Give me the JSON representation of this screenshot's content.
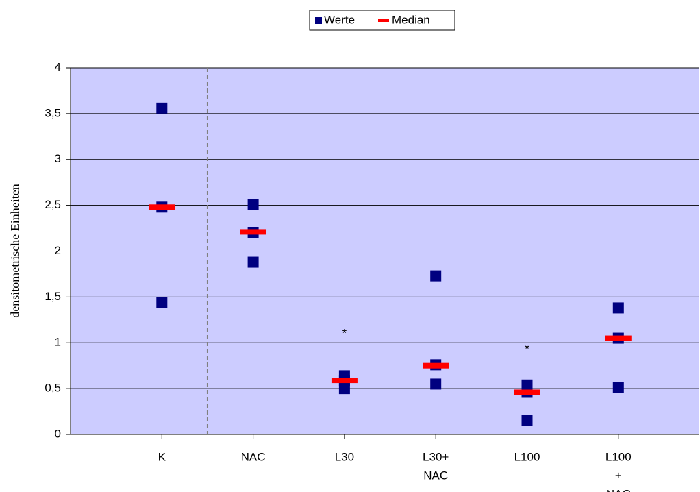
{
  "chart_data": {
    "type": "dot",
    "y_label": "densitometrische Einheiten",
    "categories": [
      [
        "K"
      ],
      [
        "NAC"
      ],
      [
        "L30"
      ],
      [
        "L30+",
        "NAC"
      ],
      [
        "L100"
      ],
      [
        "L100",
        "+",
        "NAC"
      ]
    ],
    "series": [
      {
        "name": "Werte",
        "color": "#000080",
        "values": [
          [
            3.56,
            2.48,
            1.44
          ],
          [
            2.51,
            2.2,
            1.88
          ],
          [
            0.64,
            0.59,
            0.5
          ],
          [
            1.73,
            0.76,
            0.55
          ],
          [
            0.54,
            0.46,
            0.15
          ],
          [
            1.38,
            1.05,
            0.51
          ]
        ]
      },
      {
        "name": "Median",
        "color": "#ff0000",
        "values": [
          2.48,
          2.21,
          0.59,
          0.75,
          0.46,
          1.05
        ]
      }
    ],
    "annotations": [
      {
        "text": "*",
        "category": 2,
        "y": 1.12
      },
      {
        "text": "*",
        "category": 4,
        "y": 0.95
      }
    ],
    "ylim": [
      0,
      4
    ],
    "yticks": [
      0,
      {
        "value": 0.5,
        "label": "0,5"
      },
      1,
      {
        "value": 1.5,
        "label": "1,5"
      },
      2,
      {
        "value": 2.5,
        "label": "2,5"
      },
      3,
      {
        "value": 3.5,
        "label": "3,5"
      },
      4
    ],
    "grid": true,
    "legend": "top",
    "background": "#ccccff"
  }
}
